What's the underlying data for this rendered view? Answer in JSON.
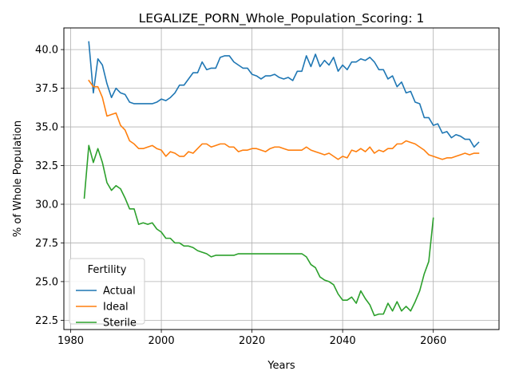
{
  "chart_data": {
    "type": "line",
    "title": "LEGALIZE_PORN_Whole_Population_Scoring: 1",
    "xlabel": "Years",
    "ylabel": "% of Whole Population",
    "xlim": [
      1978.5,
      2074.5
    ],
    "ylim": [
      21.9,
      41.4
    ],
    "xticks": [
      1980,
      2000,
      2020,
      2040,
      2060
    ],
    "yticks": [
      22.5,
      25.0,
      27.5,
      30.0,
      32.5,
      35.0,
      37.5,
      40.0
    ],
    "xtick_labels": [
      "1980",
      "2000",
      "2020",
      "2040",
      "2060"
    ],
    "ytick_labels": [
      "22.5",
      "25.0",
      "27.5",
      "30.0",
      "32.5",
      "35.0",
      "37.5",
      "40.0"
    ],
    "grid": true,
    "legend": {
      "title": "Fertility",
      "placement": "lower-left"
    },
    "series": [
      {
        "name": "Actual",
        "color": "#1f77b4",
        "x": [
          1984,
          1985,
          1986,
          1987,
          1988,
          1989,
          1990,
          1991,
          1992,
          1993,
          1994,
          1995,
          1996,
          1997,
          1998,
          1999,
          2000,
          2001,
          2002,
          2003,
          2004,
          2005,
          2006,
          2007,
          2008,
          2009,
          2010,
          2011,
          2012,
          2013,
          2014,
          2015,
          2016,
          2017,
          2018,
          2019,
          2020,
          2021,
          2022,
          2023,
          2024,
          2025,
          2026,
          2027,
          2028,
          2029,
          2030,
          2031,
          2032,
          2033,
          2034,
          2035,
          2036,
          2037,
          2038,
          2039,
          2040,
          2041,
          2042,
          2043,
          2044,
          2045,
          2046,
          2047,
          2048,
          2049,
          2050,
          2051,
          2052,
          2053,
          2054,
          2055,
          2056,
          2057,
          2058,
          2059,
          2060,
          2061,
          2062,
          2063,
          2064,
          2065,
          2066,
          2067,
          2068,
          2069,
          2070
        ],
        "values": [
          40.5,
          37.2,
          39.4,
          39.0,
          37.8,
          36.9,
          37.5,
          37.2,
          37.1,
          36.6,
          36.5,
          36.5,
          36.5,
          36.5,
          36.5,
          36.6,
          36.8,
          36.7,
          36.9,
          37.2,
          37.7,
          37.7,
          38.1,
          38.5,
          38.5,
          39.2,
          38.7,
          38.8,
          38.8,
          39.5,
          39.6,
          39.6,
          39.2,
          39.0,
          38.8,
          38.8,
          38.4,
          38.3,
          38.1,
          38.3,
          38.3,
          38.4,
          38.2,
          38.1,
          38.2,
          38.0,
          38.6,
          38.6,
          39.6,
          38.9,
          39.7,
          38.9,
          39.3,
          39.0,
          39.5,
          38.6,
          39.0,
          38.7,
          39.2,
          39.2,
          39.4,
          39.3,
          39.5,
          39.2,
          38.7,
          38.7,
          38.1,
          38.3,
          37.6,
          37.9,
          37.2,
          37.3,
          36.6,
          36.5,
          35.6,
          35.6,
          35.1,
          35.2,
          34.6,
          34.7,
          34.3,
          34.5,
          34.4,
          34.2,
          34.2,
          33.7,
          34.0
        ]
      },
      {
        "name": "Ideal",
        "color": "#ff7f0e",
        "x": [
          1984,
          1985,
          1986,
          1987,
          1988,
          1989,
          1990,
          1991,
          1992,
          1993,
          1994,
          1995,
          1996,
          1997,
          1998,
          1999,
          2000,
          2001,
          2002,
          2003,
          2004,
          2005,
          2006,
          2007,
          2008,
          2009,
          2010,
          2011,
          2012,
          2013,
          2014,
          2015,
          2016,
          2017,
          2018,
          2019,
          2020,
          2021,
          2022,
          2023,
          2024,
          2025,
          2026,
          2027,
          2028,
          2029,
          2030,
          2031,
          2032,
          2033,
          2034,
          2035,
          2036,
          2037,
          2038,
          2039,
          2040,
          2041,
          2042,
          2043,
          2044,
          2045,
          2046,
          2047,
          2048,
          2049,
          2050,
          2051,
          2052,
          2053,
          2054,
          2055,
          2056,
          2057,
          2058,
          2059,
          2060,
          2061,
          2062,
          2063,
          2064,
          2065,
          2066,
          2067,
          2068,
          2069,
          2070
        ],
        "values": [
          38.0,
          37.6,
          37.6,
          36.9,
          35.7,
          35.8,
          35.9,
          35.1,
          34.8,
          34.1,
          33.9,
          33.6,
          33.6,
          33.7,
          33.8,
          33.6,
          33.5,
          33.1,
          33.4,
          33.3,
          33.1,
          33.1,
          33.4,
          33.3,
          33.6,
          33.9,
          33.9,
          33.7,
          33.8,
          33.9,
          33.9,
          33.7,
          33.7,
          33.4,
          33.5,
          33.5,
          33.6,
          33.6,
          33.5,
          33.4,
          33.6,
          33.7,
          33.7,
          33.6,
          33.5,
          33.5,
          33.5,
          33.5,
          33.7,
          33.5,
          33.4,
          33.3,
          33.2,
          33.3,
          33.1,
          32.9,
          33.1,
          33.0,
          33.5,
          33.4,
          33.6,
          33.4,
          33.7,
          33.3,
          33.5,
          33.4,
          33.6,
          33.6,
          33.9,
          33.9,
          34.1,
          34.0,
          33.9,
          33.7,
          33.5,
          33.2,
          33.1,
          33.0,
          32.9,
          33.0,
          33.0,
          33.1,
          33.2,
          33.3,
          33.2,
          33.3,
          33.3
        ]
      },
      {
        "name": "Sterile",
        "color": "#2ca02c",
        "x": [
          1983,
          1984,
          1985,
          1986,
          1987,
          1988,
          1989,
          1990,
          1991,
          1992,
          1993,
          1994,
          1995,
          1996,
          1997,
          1998,
          1999,
          2000,
          2001,
          2002,
          2003,
          2004,
          2005,
          2006,
          2007,
          2008,
          2009,
          2010,
          2011,
          2012,
          2013,
          2014,
          2015,
          2016,
          2017,
          2018,
          2019,
          2020,
          2021,
          2022,
          2023,
          2024,
          2025,
          2026,
          2027,
          2028,
          2029,
          2030,
          2031,
          2032,
          2033,
          2034,
          2035,
          2036,
          2037,
          2038,
          2039,
          2040,
          2041,
          2042,
          2043,
          2044,
          2045,
          2046,
          2047,
          2048,
          2049,
          2050,
          2051,
          2052,
          2053,
          2054,
          2055,
          2056,
          2057,
          2058,
          2059,
          2060
        ],
        "values": [
          30.4,
          33.8,
          32.7,
          33.6,
          32.7,
          31.4,
          30.9,
          31.2,
          31.0,
          30.4,
          29.7,
          29.7,
          28.7,
          28.8,
          28.7,
          28.8,
          28.4,
          28.2,
          27.8,
          27.8,
          27.5,
          27.5,
          27.3,
          27.3,
          27.2,
          27.0,
          26.9,
          26.8,
          26.6,
          26.7,
          26.7,
          26.7,
          26.7,
          26.7,
          26.8,
          26.8,
          26.8,
          26.8,
          26.8,
          26.8,
          26.8,
          26.8,
          26.8,
          26.8,
          26.8,
          26.8,
          26.8,
          26.8,
          26.8,
          26.6,
          26.1,
          25.9,
          25.3,
          25.1,
          25.0,
          24.8,
          24.2,
          23.8,
          23.8,
          24.0,
          23.6,
          24.4,
          23.9,
          23.5,
          22.8,
          22.9,
          22.9,
          23.6,
          23.1,
          23.7,
          23.1,
          23.4,
          23.1,
          23.7,
          24.4,
          25.5,
          26.3,
          29.1
        ]
      }
    ]
  }
}
